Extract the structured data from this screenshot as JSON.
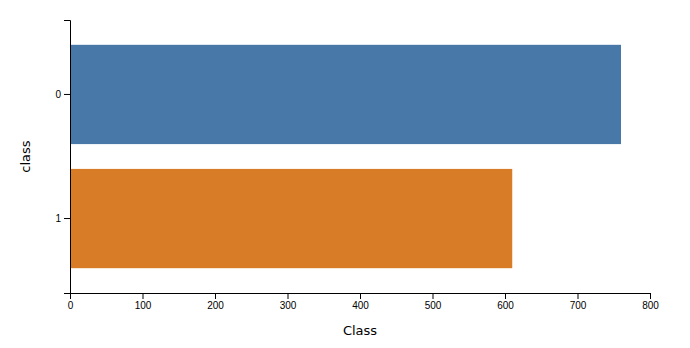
{
  "chart_data": {
    "type": "bar",
    "orientation": "horizontal",
    "categories": [
      "0",
      "1"
    ],
    "values": [
      760,
      610
    ],
    "colors": [
      "#4878a8",
      "#d97c28"
    ],
    "xlabel": "Class",
    "ylabel": "class",
    "xlim": [
      0,
      800
    ],
    "xticks": [
      0,
      100,
      200,
      300,
      400,
      500,
      600,
      700,
      800
    ]
  }
}
